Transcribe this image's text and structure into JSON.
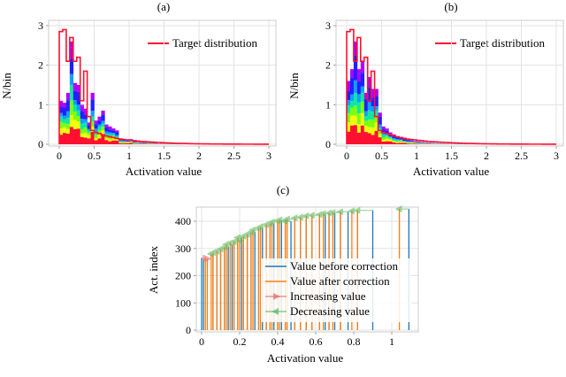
{
  "chart_data": [
    {
      "type": "bar",
      "panel_label": "(a)",
      "xlabel": "Activation value",
      "ylabel": "N/bin",
      "xlim": [
        0,
        3
      ],
      "ylim": [
        0,
        3
      ],
      "xticks": [
        "0",
        "0.5",
        "1",
        "1.5",
        "2",
        "2.5",
        "3"
      ],
      "xtick_values": [
        0,
        0.5,
        1,
        1.5,
        2,
        2.5,
        3
      ],
      "yticks": [
        "0",
        "1",
        "2",
        "3"
      ],
      "ytick_values": [
        0,
        1,
        2,
        3
      ],
      "grid": true,
      "bin_width": 0.05,
      "stacked_totals": [
        1.1,
        1.05,
        1.3,
        2.6,
        1.55,
        1.5,
        1.0,
        0.9,
        0.55,
        1.3,
        0.6,
        0.7,
        0.85,
        0.5,
        0.45,
        0.4,
        0.35,
        0.15,
        0.12,
        0.1,
        0.13,
        0.08,
        0.06,
        0.05,
        0.05,
        0.06,
        0.04,
        0.03,
        0.02,
        0.02,
        0.02,
        0.015,
        0.01,
        0.01,
        0.01,
        0.008,
        0.006,
        0.005,
        0.004,
        0.003
      ],
      "stack_layer_fractions": [
        0.22,
        0.12,
        0.12,
        0.12,
        0.1,
        0.18,
        0.14
      ],
      "stack_layer_colors": [
        "#ff1030",
        "#f0ff10",
        "#7dff10",
        "#10e8a0",
        "#10a0ff",
        "#2020ff",
        "#b000ff"
      ],
      "target": {
        "name": "Target distribution",
        "color": "#ff1030",
        "values": [
          2.85,
          2.9,
          2.1,
          2.7,
          2.1,
          2.2,
          1.1,
          1.85,
          0.7,
          0.35,
          0.3,
          0.27,
          0.24,
          0.21,
          0.19,
          0.17,
          0.15,
          0.13,
          0.12,
          0.11,
          0.1,
          0.09,
          0.08,
          0.07,
          0.065,
          0.06,
          0.055,
          0.05,
          0.045,
          0.04,
          0.036,
          0.032,
          0.028,
          0.025,
          0.022,
          0.02,
          0.018,
          0.016,
          0.014,
          0.012,
          0.011,
          0.01,
          0.009,
          0.008,
          0.007,
          0.006,
          0.006,
          0.005,
          0.005,
          0.004,
          0.004,
          0.004,
          0.003,
          0.003,
          0.003,
          0.003,
          0.002,
          0.002,
          0.002,
          0.002
        ]
      },
      "legend_position": "top-right"
    },
    {
      "type": "bar",
      "panel_label": "(b)",
      "xlabel": "Activation value",
      "ylabel": "N/bin",
      "xlim": [
        0,
        3
      ],
      "ylim": [
        0,
        3
      ],
      "xticks": [
        "0",
        "0.5",
        "1",
        "1.5",
        "2",
        "2.5",
        "3"
      ],
      "xtick_values": [
        0,
        0.5,
        1,
        1.5,
        2,
        2.5,
        3
      ],
      "yticks": [
        "0",
        "1",
        "2",
        "3"
      ],
      "ytick_values": [
        0,
        1,
        2,
        3
      ],
      "grid": true,
      "bin_width": 0.05,
      "stacked_totals": [
        1.6,
        1.9,
        2.6,
        1.9,
        2.1,
        1.3,
        1.7,
        1.4,
        1.4,
        0.8,
        0.45,
        0.4,
        0.3,
        0.25,
        0.2,
        0.17,
        0.14,
        0.12,
        0.1,
        0.08,
        0.07,
        0.06,
        0.05,
        0.04,
        0.035,
        0.03,
        0.025,
        0.02,
        0.018,
        0.015,
        0.012,
        0.01,
        0.008,
        0.007,
        0.006,
        0.005,
        0.004,
        0.003
      ],
      "stack_layer_fractions": [
        0.2,
        0.12,
        0.12,
        0.12,
        0.1,
        0.2,
        0.14
      ],
      "stack_layer_colors": [
        "#ff1030",
        "#f0ff10",
        "#7dff10",
        "#10e8a0",
        "#10a0ff",
        "#2020ff",
        "#b000ff"
      ],
      "target": {
        "name": "Target distribution",
        "color": "#ff1030",
        "values": [
          2.85,
          2.9,
          2.1,
          2.7,
          2.1,
          2.2,
          1.1,
          1.85,
          0.7,
          0.35,
          0.3,
          0.27,
          0.24,
          0.21,
          0.19,
          0.17,
          0.15,
          0.13,
          0.12,
          0.11,
          0.1,
          0.09,
          0.08,
          0.07,
          0.065,
          0.06,
          0.055,
          0.05,
          0.045,
          0.04,
          0.036,
          0.032,
          0.028,
          0.025,
          0.022,
          0.02,
          0.018,
          0.016,
          0.014,
          0.012,
          0.011,
          0.01,
          0.009,
          0.008,
          0.007,
          0.006,
          0.006,
          0.005,
          0.005,
          0.004,
          0.004,
          0.004,
          0.003,
          0.003,
          0.003,
          0.003,
          0.002,
          0.002,
          0.002,
          0.002
        ]
      },
      "legend_position": "top-right"
    },
    {
      "type": "bar",
      "panel_label": "(c)",
      "xlabel": "Activation value",
      "ylabel": "Act. index",
      "xlim": [
        -0.03,
        1.14
      ],
      "ylim": [
        0,
        450
      ],
      "xticks": [
        "0",
        "0.2",
        "0.4",
        "0.6",
        "0.8",
        "1"
      ],
      "xtick_values": [
        0,
        0.2,
        0.4,
        0.6,
        0.8,
        1
      ],
      "yticks": [
        "0",
        "100",
        "200",
        "300",
        "400"
      ],
      "ytick_values": [
        0,
        100,
        200,
        300,
        400
      ],
      "grid": true,
      "legend": [
        {
          "label": "Value before correction",
          "color": "#1f77b4"
        },
        {
          "label": "Value after correction",
          "color": "#ff7f0e"
        },
        {
          "label": "Increasing value",
          "color": "#e8696b"
        },
        {
          "label": "Decreasing value",
          "color": "#5cb85c"
        }
      ],
      "legend_position": "bottom-right",
      "columns": [
        "before",
        "after",
        "index"
      ],
      "points": [
        [
          0.0,
          0.02,
          265
        ],
        [
          0.01,
          0.03,
          262
        ],
        [
          0.06,
          0.05,
          280
        ],
        [
          0.08,
          0.06,
          285
        ],
        [
          0.1,
          0.08,
          290
        ],
        [
          0.12,
          0.1,
          298
        ],
        [
          0.14,
          0.12,
          305
        ],
        [
          0.16,
          0.13,
          315
        ],
        [
          0.17,
          0.15,
          320
        ],
        [
          0.19,
          0.17,
          325
        ],
        [
          0.21,
          0.19,
          340
        ],
        [
          0.22,
          0.2,
          330
        ],
        [
          0.24,
          0.22,
          345
        ],
        [
          0.26,
          0.24,
          352
        ],
        [
          0.28,
          0.26,
          360
        ],
        [
          0.3,
          0.27,
          368
        ],
        [
          0.32,
          0.3,
          375
        ],
        [
          0.34,
          0.31,
          380
        ],
        [
          0.36,
          0.34,
          388
        ],
        [
          0.38,
          0.36,
          392
        ],
        [
          0.4,
          0.37,
          397
        ],
        [
          0.42,
          0.4,
          402
        ],
        [
          0.44,
          0.41,
          405
        ],
        [
          0.47,
          0.44,
          400
        ],
        [
          0.49,
          0.45,
          408
        ],
        [
          0.52,
          0.49,
          412
        ],
        [
          0.55,
          0.52,
          415
        ],
        [
          0.58,
          0.55,
          420
        ],
        [
          0.62,
          0.58,
          422
        ],
        [
          0.65,
          0.62,
          425
        ],
        [
          0.67,
          0.64,
          428
        ],
        [
          0.7,
          0.67,
          430
        ],
        [
          0.73,
          0.69,
          432
        ],
        [
          0.77,
          0.73,
          435
        ],
        [
          0.82,
          0.79,
          438
        ],
        [
          0.9,
          0.82,
          440
        ],
        [
          1.09,
          1.04,
          445
        ]
      ]
    }
  ]
}
